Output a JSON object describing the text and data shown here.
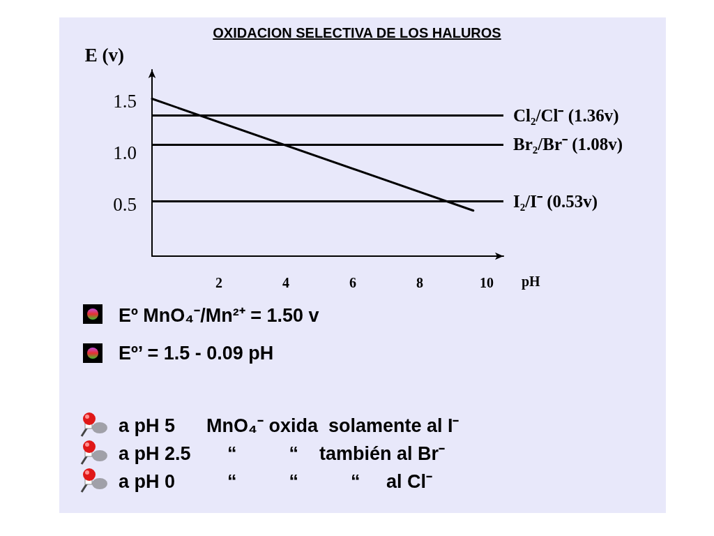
{
  "chart_data": {
    "type": "line",
    "title": "OXIDACION SELECTIVA DE LOS HALUROS",
    "xlabel": "pH",
    "ylabel": "E (v)",
    "x": [
      0,
      9.6
    ],
    "series": [
      {
        "color": "#000000",
        "values": [
          1.52,
          0.44
        ]
      }
    ],
    "xlim": [
      0,
      10.5
    ],
    "xticks": [
      2,
      4,
      6,
      8,
      10
    ],
    "ylim": [
      0,
      1.8
    ],
    "yticks": [
      0.5,
      {
        "value": 1.0,
        "label": "1.0"
      },
      1.5
    ],
    "ref_lines": [
      {
        "axis": "y",
        "value": 1.36,
        "label": "Cl₂/Cl⁻ (1.36v)",
        "color": "#000000"
      },
      {
        "axis": "y",
        "value": 1.08,
        "label": "Br₂/Br⁻ (1.08v)",
        "color": "#000000"
      },
      {
        "axis": "y",
        "value": 0.53,
        "label": "I₂/I⁻ (0.53v)",
        "color": "#000000"
      }
    ],
    "annotations": [
      "Eº MnO₄⁻/Mn²⁺ = 1.50 v",
      "Eº’ = 1.5 - 0.09 pH",
      "a pH 5      MnO₄⁻ oxida  solamente al I⁻",
      "a pH 2.5       “          “    también al Br⁻",
      "a pH 0          “          “          “     al Cl⁻"
    ],
    "grid": false,
    "marker": "none",
    "line_style": "solid"
  }
}
